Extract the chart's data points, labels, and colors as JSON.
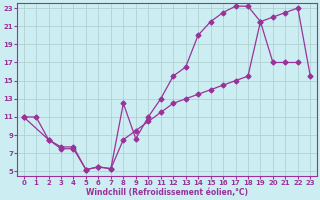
{
  "xlabel": "Windchill (Refroidissement éolien,°C)",
  "background_color": "#cceef2",
  "line_color": "#993399",
  "grid_color": "#aacccc",
  "xlim": [
    -0.5,
    23.5
  ],
  "ylim": [
    4.5,
    23.5
  ],
  "xticks": [
    0,
    1,
    2,
    3,
    4,
    5,
    6,
    7,
    8,
    9,
    10,
    11,
    12,
    13,
    14,
    15,
    16,
    17,
    18,
    19,
    20,
    21,
    22,
    23
  ],
  "yticks": [
    5,
    7,
    9,
    11,
    13,
    15,
    17,
    19,
    21,
    23
  ],
  "curve1_x": [
    0,
    1,
    2,
    3,
    4,
    5,
    6,
    7,
    8,
    9,
    10,
    11,
    12,
    13,
    14,
    15,
    16,
    17,
    18,
    19,
    20,
    21,
    22
  ],
  "curve1_y": [
    11,
    11,
    8.5,
    7.5,
    7.5,
    5.2,
    5.5,
    5.3,
    12.5,
    8.6,
    11.0,
    13.0,
    15.5,
    16.5,
    20.0,
    21.5,
    22.5,
    23.2,
    23.2,
    21.5,
    17.0,
    17.0,
    17.0
  ],
  "curve2_x": [
    0,
    2,
    3,
    4,
    5,
    6,
    7,
    8,
    9,
    10,
    11,
    12,
    13,
    14,
    15,
    16,
    17,
    18,
    19,
    20,
    21,
    22,
    23
  ],
  "curve2_y": [
    11,
    8.5,
    7.7,
    7.7,
    5.2,
    5.5,
    5.3,
    8.5,
    9.5,
    10.5,
    11.5,
    12.5,
    13.0,
    13.5,
    14.0,
    14.5,
    15.0,
    15.5,
    21.5,
    22.0,
    22.5,
    23.0,
    15.5
  ]
}
